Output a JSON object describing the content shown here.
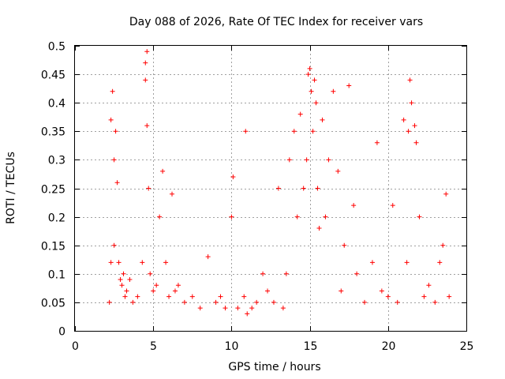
{
  "chart_data": {
    "type": "scatter",
    "title": "Day 088 of 2026, Rate Of TEC Index for receiver vars",
    "xlabel": "GPS time / hours",
    "ylabel": "ROTI / TECUs",
    "xlim": [
      0,
      25
    ],
    "ylim": [
      0,
      0.5
    ],
    "x_ticks": [
      "0",
      "5",
      "10",
      "15",
      "20",
      "25"
    ],
    "y_ticks": [
      "0",
      "0.05",
      "0.1",
      "0.15",
      "0.2",
      "0.25",
      "0.3",
      "0.35",
      "0.4",
      "0.45",
      "0.5"
    ],
    "grid": true,
    "marker": "+",
    "point_color": "#ff0000",
    "series": [
      {
        "x": [
          2.2,
          2.3,
          2.3,
          2.4,
          2.5,
          2.5,
          2.6,
          2.7,
          2.8,
          2.9,
          3.0,
          3.1,
          3.2,
          3.3,
          3.5,
          3.7,
          4.0,
          4.3,
          4.5,
          4.5,
          4.6,
          4.6,
          4.7,
          4.8,
          5.0,
          5.2,
          5.4,
          5.6,
          5.8,
          6.0,
          6.2,
          6.4,
          6.6,
          7.0,
          7.5,
          8.0,
          8.5,
          9.0,
          9.3,
          9.6,
          10.0,
          10.1,
          10.4,
          10.8,
          10.9,
          11.0,
          11.3,
          11.6,
          12.0,
          12.3,
          12.7,
          13.0,
          13.3,
          13.5,
          13.7,
          14.0,
          14.2,
          14.4,
          14.6,
          14.8,
          14.9,
          15.0,
          15.1,
          15.2,
          15.3,
          15.4,
          15.5,
          15.6,
          15.8,
          16.0,
          16.2,
          16.5,
          16.8,
          17.0,
          17.2,
          17.5,
          17.8,
          18.0,
          18.5,
          19.0,
          19.3,
          19.6,
          20.0,
          20.3,
          20.6,
          21.0,
          21.2,
          21.3,
          21.4,
          21.5,
          21.7,
          21.8,
          22.0,
          22.3,
          22.6,
          23.0,
          23.3,
          23.5,
          23.7,
          23.9
        ],
        "y": [
          0.05,
          0.12,
          0.37,
          0.42,
          0.3,
          0.15,
          0.35,
          0.26,
          0.12,
          0.09,
          0.08,
          0.1,
          0.06,
          0.07,
          0.09,
          0.05,
          0.06,
          0.12,
          0.47,
          0.44,
          0.49,
          0.36,
          0.25,
          0.1,
          0.07,
          0.08,
          0.2,
          0.28,
          0.12,
          0.06,
          0.24,
          0.07,
          0.08,
          0.05,
          0.06,
          0.04,
          0.13,
          0.05,
          0.06,
          0.04,
          0.2,
          0.27,
          0.04,
          0.06,
          0.35,
          0.03,
          0.04,
          0.05,
          0.1,
          0.07,
          0.05,
          0.25,
          0.04,
          0.1,
          0.3,
          0.35,
          0.2,
          0.38,
          0.25,
          0.3,
          0.45,
          0.46,
          0.42,
          0.35,
          0.44,
          0.4,
          0.25,
          0.18,
          0.37,
          0.2,
          0.3,
          0.42,
          0.28,
          0.07,
          0.15,
          0.43,
          0.22,
          0.1,
          0.05,
          0.12,
          0.33,
          0.07,
          0.06,
          0.22,
          0.05,
          0.37,
          0.12,
          0.35,
          0.44,
          0.4,
          0.36,
          0.33,
          0.2,
          0.06,
          0.08,
          0.05,
          0.12,
          0.15,
          0.24,
          0.06
        ]
      }
    ]
  }
}
